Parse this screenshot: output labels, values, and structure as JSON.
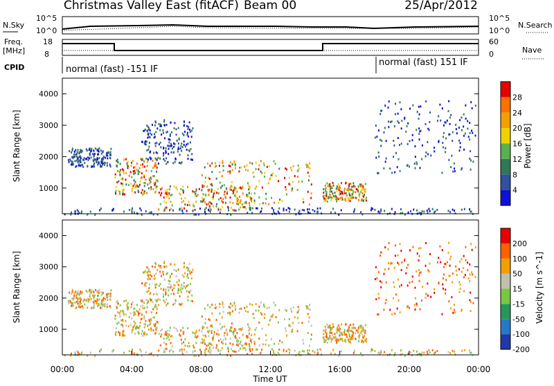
{
  "header": {
    "title": "Christmas Valley East (fitACF)",
    "beam": "Beam 00",
    "date": "25/Apr/2012"
  },
  "noise_panel": {
    "left_label": "N.Sky",
    "left_ticks": [
      "10^5",
      "10^0"
    ],
    "right_label": "N.Search",
    "right_ticks": [
      "10^5",
      "10^0"
    ]
  },
  "freq_panel": {
    "left_label_1": "Freq.",
    "left_label_2": "[MHz]",
    "left_ticks": [
      "18",
      "8"
    ],
    "right_label": "Nave",
    "right_ticks": [
      "60",
      "0"
    ]
  },
  "cpid": {
    "label": "CPID",
    "mode_1": "normal (fast) -151 IF",
    "mode_2": "normal (fast) 151 IF"
  },
  "chart_data": [
    {
      "type": "heatmap",
      "name": "power",
      "ylabel": "Slant Range [km]",
      "yticks": [
        "1000",
        "2000",
        "3000",
        "4000"
      ],
      "ylim": [
        180,
        4500
      ],
      "xlim": [
        0,
        24
      ],
      "colorbar_label": "Power [dB]",
      "colorbar_ticks": [
        "4",
        "8",
        "12",
        "16",
        "20",
        "24",
        "28"
      ],
      "colorbar_colors": [
        "#1010d8",
        "#3050a0",
        "#307858",
        "#58b050",
        "#ecd300",
        "#f0a000",
        "#ff7000",
        "#e80000"
      ]
    },
    {
      "type": "heatmap",
      "name": "velocity",
      "ylabel": "Slant Range [km]",
      "yticks": [
        "1000",
        "2000",
        "3000",
        "4000"
      ],
      "ylim": [
        180,
        4500
      ],
      "xlim": [
        0,
        24
      ],
      "xticks": [
        "00:00",
        "04:00",
        "08:00",
        "12:00",
        "16:00",
        "20:00",
        "00:00"
      ],
      "xlabel": "Time UT",
      "colorbar_label": "Velocity [m s^-1]",
      "colorbar_ticks": [
        "200",
        "100",
        "50",
        "15",
        "-15",
        "-50",
        "-100",
        "-200"
      ],
      "colorbar_colors": [
        "#2038a8",
        "#2878c8",
        "#289858",
        "#78c840",
        "#c0c0b0",
        "#f0a000",
        "#ff6000",
        "#e80000"
      ]
    }
  ]
}
